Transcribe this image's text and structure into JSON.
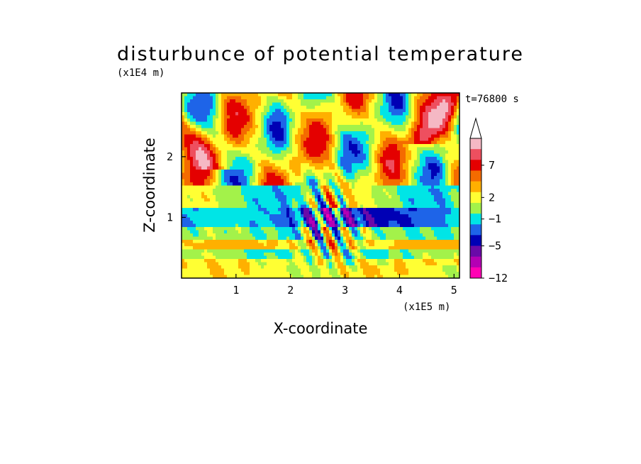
{
  "chart_data": {
    "type": "heatmap",
    "title": "disturbunce of potential temperature",
    "xlabel": "X-coordinate",
    "ylabel": "Z-coordinate",
    "x_scale_label": "(x1E5 m)",
    "y_scale_label": "(x1E4 m)",
    "time_label": "t=76800 s",
    "xlim": [
      0,
      5.1
    ],
    "ylim": [
      0,
      3.05
    ],
    "x_ticks": [
      "1",
      "2",
      "3",
      "4",
      "5"
    ],
    "y_ticks": [
      "1",
      "2"
    ],
    "colorbar": {
      "labels": [
        "7",
        "2",
        "−1",
        "−5",
        "−12"
      ],
      "colors": [
        "#f5b8c4",
        "#ee4f5f",
        "#e40000",
        "#f46b00",
        "#ffb000",
        "#ffff33",
        "#a3f24a",
        "#00e5e6",
        "#1e64e8",
        "#0000b5",
        "#6a0aa8",
        "#b400b4",
        "#ff00b4"
      ],
      "extend_max": true
    },
    "grid": false
  }
}
